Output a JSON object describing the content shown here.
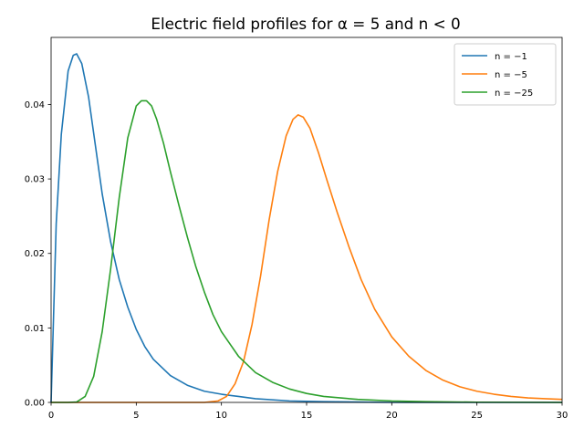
{
  "chart_data": {
    "type": "line",
    "title": "Electric field profiles for α = 5 and n < 0",
    "xlabel": "",
    "ylabel": "",
    "xlim": [
      0,
      30
    ],
    "ylim": [
      0,
      0.049
    ],
    "xticks": [
      0,
      5,
      10,
      15,
      20,
      25,
      30
    ],
    "yticks": [
      0.0,
      0.01,
      0.02,
      0.03,
      0.04
    ],
    "xtick_labels": [
      "0",
      "5",
      "10",
      "15",
      "20",
      "25",
      "30"
    ],
    "ytick_labels": [
      "0.00",
      "0.01",
      "0.02",
      "0.03",
      "0.04"
    ],
    "grid": false,
    "legend_position": "top-right",
    "series": [
      {
        "name": "n = −1",
        "color": "#1f77b4",
        "x": [
          0,
          0.3,
          0.6,
          1.0,
          1.3,
          1.5,
          1.8,
          2.2,
          2.6,
          3.0,
          3.5,
          4.0,
          4.5,
          5.0,
          5.5,
          6.0,
          7.0,
          8.0,
          9.0,
          10.0,
          11.0,
          12.0,
          14.0,
          16.0,
          18.0,
          20.0,
          25.0,
          30.0
        ],
        "y": [
          0.0,
          0.024,
          0.036,
          0.0445,
          0.0466,
          0.0468,
          0.0455,
          0.041,
          0.0345,
          0.028,
          0.0215,
          0.0165,
          0.0128,
          0.0098,
          0.0075,
          0.0058,
          0.0036,
          0.0023,
          0.0015,
          0.0011,
          0.0008,
          0.0005,
          0.0002,
          0.0001,
          5e-05,
          0.0,
          0.0,
          0.0
        ]
      },
      {
        "name": "n = −5",
        "color": "#ff7f0e",
        "x": [
          0,
          9.0,
          9.8,
          10.3,
          10.8,
          11.3,
          11.8,
          12.3,
          12.8,
          13.3,
          13.8,
          14.2,
          14.5,
          14.8,
          15.2,
          15.7,
          16.2,
          16.8,
          17.5,
          18.2,
          19.0,
          20.0,
          21.0,
          22.0,
          23.0,
          24.0,
          25.0,
          26.0,
          27.0,
          28.0,
          29.0,
          30.0
        ],
        "y": [
          0.0,
          0.0,
          0.0002,
          0.0008,
          0.0025,
          0.0055,
          0.0105,
          0.017,
          0.0245,
          0.031,
          0.0358,
          0.038,
          0.0386,
          0.0383,
          0.0368,
          0.0335,
          0.0298,
          0.0255,
          0.0208,
          0.0165,
          0.0125,
          0.0088,
          0.0062,
          0.0043,
          0.003,
          0.0021,
          0.0015,
          0.0011,
          0.0008,
          0.0006,
          0.0005,
          0.0004
        ]
      },
      {
        "name": "n = −25",
        "color": "#2ca02c",
        "x": [
          0,
          1.0,
          1.5,
          2.0,
          2.5,
          3.0,
          3.5,
          4.0,
          4.5,
          5.0,
          5.3,
          5.6,
          5.9,
          6.2,
          6.6,
          7.0,
          7.5,
          8.0,
          8.5,
          9.0,
          9.5,
          10.0,
          11.0,
          12.0,
          13.0,
          14.0,
          15.0,
          16.0,
          18.0,
          20.0,
          22.0,
          25.0,
          30.0
        ],
        "y": [
          0.0,
          0.0,
          5e-05,
          0.0008,
          0.0035,
          0.0095,
          0.018,
          0.0275,
          0.0355,
          0.0398,
          0.0405,
          0.0405,
          0.0398,
          0.038,
          0.0348,
          0.031,
          0.0265,
          0.0222,
          0.0182,
          0.0148,
          0.0118,
          0.0095,
          0.0062,
          0.004,
          0.0027,
          0.0018,
          0.0012,
          0.0008,
          0.0004,
          0.0002,
          0.0001,
          3e-05,
          0.0
        ]
      }
    ]
  }
}
